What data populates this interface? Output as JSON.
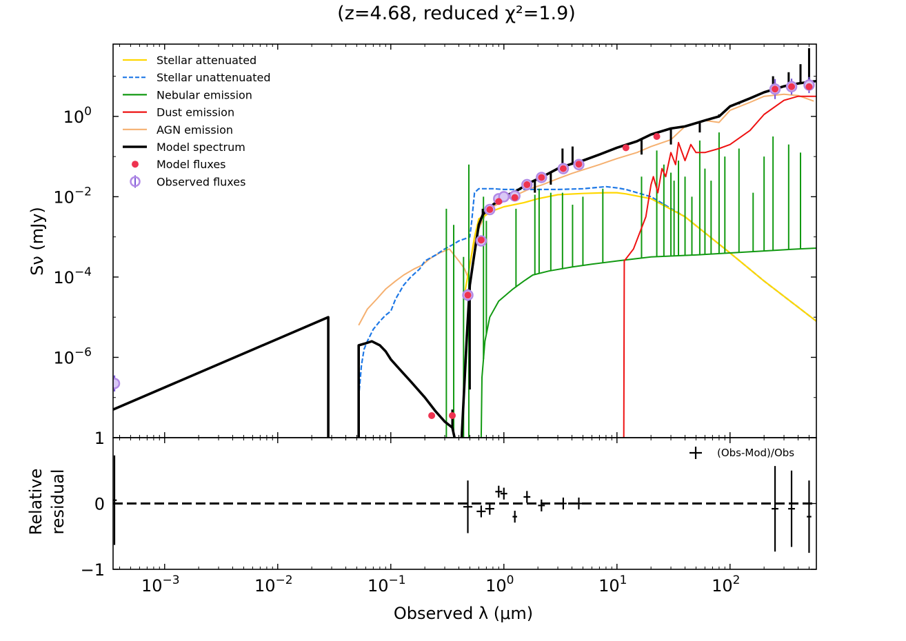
{
  "chart_data": {
    "type": "sed",
    "title": "(z=4.68, reduced χ²=1.9)",
    "xlabel": "Observed λ (μm)",
    "ylabel_main": "Sν (mJy)",
    "ylabel_residual_line1": "Relative",
    "ylabel_residual_line2": "residual",
    "x_scale": "log",
    "xlim": [
      0.00035,
      580
    ],
    "main_ylim_log10": [
      -8,
      1.8
    ],
    "residual_ylim": [
      -1,
      1
    ],
    "x_ticks": [
      {
        "value": 0.001,
        "base": "10",
        "exp": "−3"
      },
      {
        "value": 0.01,
        "base": "10",
        "exp": "−2"
      },
      {
        "value": 0.1,
        "base": "10",
        "exp": "−1"
      },
      {
        "value": 1,
        "base": "10",
        "exp": "0"
      },
      {
        "value": 10,
        "base": "10",
        "exp": "1"
      },
      {
        "value": 100,
        "base": "10",
        "exp": "2"
      }
    ],
    "main_y_ticks": [
      {
        "log10": -6,
        "base": "10",
        "exp": "−6"
      },
      {
        "log10": -4,
        "base": "10",
        "exp": "−4"
      },
      {
        "log10": -2,
        "base": "10",
        "exp": "−2"
      },
      {
        "log10": 0,
        "base": "10",
        "exp": "0"
      }
    ],
    "residual_y_ticks": [
      {
        "value": 1,
        "label": "1"
      },
      {
        "value": 0,
        "label": "0"
      },
      {
        "value": -1,
        "label": "−1"
      }
    ],
    "legend": [
      {
        "label": "Stellar attenuated",
        "color": "#ffd700",
        "style": "solid"
      },
      {
        "label": "Stellar unattenuated",
        "color": "#1e78e6",
        "style": "dashed"
      },
      {
        "label": "Nebular emission",
        "color": "#119911",
        "style": "solid"
      },
      {
        "label": "Dust emission",
        "color": "#ee1111",
        "style": "solid"
      },
      {
        "label": "AGN emission",
        "color": "#f5b070",
        "style": "solid"
      },
      {
        "label": "Model spectrum",
        "color": "#000000",
        "style": "thick"
      },
      {
        "label": "Model fluxes",
        "color": "#ee3350",
        "style": "dot"
      },
      {
        "label": "Observed fluxes",
        "color": "#b28ae6",
        "style": "circle-errorbar"
      }
    ],
    "residual_legend": "(Obs-Mod)/Obs",
    "series": [
      {
        "name": "AGN emission",
        "color": "#f5b070",
        "x": [
          0.052,
          0.062,
          0.075,
          0.09,
          0.11,
          0.13,
          0.16,
          0.19,
          0.22,
          0.27,
          0.33,
          0.4,
          0.45,
          0.48,
          0.53,
          0.6,
          0.7,
          0.8,
          1,
          1.3,
          1.7,
          2.2,
          3,
          4,
          5,
          7,
          10,
          15,
          20,
          30,
          40,
          60,
          80,
          100,
          150,
          200,
          300,
          400,
          550
        ],
        "y": [
          -5.2,
          -4.8,
          -4.55,
          -4.3,
          -4.1,
          -3.95,
          -3.8,
          -3.7,
          -3.55,
          -3.4,
          -3.3,
          -3.6,
          -3.8,
          -4.0,
          -3.3,
          -2.8,
          -2.4,
          -2.25,
          -2.1,
          -1.95,
          -1.8,
          -1.7,
          -1.55,
          -1.42,
          -1.33,
          -1.2,
          -1.05,
          -0.9,
          -0.75,
          -0.58,
          -0.25,
          -0.1,
          -0.15,
          0.15,
          0.35,
          0.5,
          0.55,
          0.52,
          0.38
        ]
      },
      {
        "name": "Stellar unattenuated",
        "color": "#1e78e6",
        "x": [
          0.052,
          0.055,
          0.058,
          0.062,
          0.07,
          0.08,
          0.09,
          0.1,
          0.11,
          0.13,
          0.15,
          0.18,
          0.2,
          0.25,
          0.3,
          0.35,
          0.4,
          0.45,
          0.5,
          0.52,
          0.55,
          0.6,
          0.8,
          1,
          1.5,
          2,
          3,
          5,
          8,
          10,
          12,
          20,
          40,
          60,
          100,
          200,
          580
        ],
        "y": [
          -7.0,
          -6.2,
          -5.8,
          -5.6,
          -5.3,
          -5.1,
          -4.95,
          -4.85,
          -4.55,
          -4.2,
          -4.0,
          -3.8,
          -3.6,
          -3.45,
          -3.3,
          -3.2,
          -3.1,
          -3.05,
          -3.0,
          -2.6,
          -1.9,
          -1.8,
          -1.8,
          -1.82,
          -1.82,
          -1.82,
          -1.82,
          -1.8,
          -1.75,
          -1.78,
          -1.82,
          -2.0,
          -2.5,
          -2.9,
          -3.4,
          -4.1,
          -5.1
        ]
      },
      {
        "name": "Stellar attenuated",
        "color": "#ffd700",
        "x": [
          0.45,
          0.5,
          0.55,
          0.6,
          0.7,
          0.8,
          1,
          1.5,
          2,
          3,
          5,
          8,
          10,
          12,
          20,
          40,
          60,
          100,
          200,
          580
        ],
        "y": [
          -4.4,
          -3.7,
          -3.0,
          -2.55,
          -2.45,
          -2.35,
          -2.25,
          -2.15,
          -2.05,
          -1.95,
          -1.92,
          -1.9,
          -1.9,
          -1.93,
          -2.05,
          -2.5,
          -2.9,
          -3.4,
          -4.1,
          -5.1
        ]
      },
      {
        "name": "Nebular emission",
        "color": "#119911",
        "x": [
          0.63,
          0.64,
          0.68,
          0.75,
          0.9,
          1.2,
          1.5,
          1.8,
          2.5,
          4,
          6,
          10,
          20,
          50,
          100,
          200,
          400,
          580
        ],
        "y": [
          -8,
          -6.5,
          -5.6,
          -5.0,
          -4.6,
          -4.3,
          -4.1,
          -3.95,
          -3.85,
          -3.75,
          -3.68,
          -3.6,
          -3.5,
          -3.45,
          -3.4,
          -3.35,
          -3.3,
          -3.28
        ],
        "spikes_x": [
          0.31,
          0.36,
          0.44,
          0.49,
          0.66,
          0.7,
          1.28,
          1.88,
          2.05,
          2.6,
          3.3,
          4.05,
          5.0,
          7.5,
          16.5,
          22.5,
          26,
          30,
          32,
          35,
          40,
          46,
          54,
          60,
          68,
          80,
          90,
          120,
          160,
          200,
          240,
          330,
          420
        ],
        "spikes_y": [
          -2.3,
          -2.7,
          -3.5,
          -1.2,
          -2.0,
          -2.6,
          -2.3,
          -1.95,
          -1.8,
          -1.9,
          -1.9,
          -2.2,
          -2.0,
          -1.8,
          -1.5,
          -0.85,
          -1.2,
          -1.4,
          -1.6,
          -1.1,
          -1.5,
          -2.0,
          -0.6,
          -1.3,
          -1.6,
          -0.4,
          -1.0,
          -0.8,
          -1.9,
          -1.0,
          -0.5,
          -0.7,
          -0.9
        ]
      },
      {
        "name": "Dust emission",
        "color": "#ee1111",
        "x": [
          11.5,
          11.6,
          14,
          18,
          20,
          21,
          23,
          25,
          27,
          30,
          33,
          35,
          40,
          45,
          50,
          60,
          80,
          100,
          150,
          200,
          300,
          400,
          580
        ],
        "y": [
          -8,
          -3.6,
          -3.3,
          -2.5,
          -1.7,
          -1.5,
          -1.9,
          -1.3,
          -1.5,
          -0.9,
          -1.2,
          -0.65,
          -1.1,
          -0.7,
          -0.9,
          -0.9,
          -0.8,
          -0.7,
          -0.35,
          0.05,
          0.4,
          0.5,
          0.5
        ]
      },
      {
        "name": "Model spectrum",
        "color": "#000000",
        "x": [
          0.00035,
          0.028,
          0.028,
          0.052,
          0.052,
          0.06,
          0.068,
          0.08,
          0.09,
          0.1,
          0.12,
          0.15,
          0.2,
          0.25,
          0.3,
          0.35,
          0.38,
          0.42,
          0.47,
          0.5,
          0.55,
          0.6,
          0.65,
          0.7,
          0.8,
          1,
          1.3,
          1.7,
          2.2,
          3,
          4,
          5,
          7,
          10,
          15,
          20,
          30,
          40,
          60,
          80,
          100,
          150,
          200,
          300,
          400,
          580
        ],
        "y": [
          -7.3,
          -5.0,
          -8.2,
          -8.2,
          -5.7,
          -5.65,
          -5.6,
          -5.7,
          -5.85,
          -6.05,
          -6.3,
          -6.6,
          -7.0,
          -7.35,
          -7.6,
          -7.75,
          -8.2,
          -8.2,
          -5.5,
          -4.2,
          -3.4,
          -2.7,
          -2.45,
          -2.35,
          -2.2,
          -2.0,
          -1.85,
          -1.65,
          -1.5,
          -1.3,
          -1.18,
          -1.1,
          -0.95,
          -0.78,
          -0.62,
          -0.45,
          -0.3,
          -0.25,
          -0.1,
          -0.0,
          0.25,
          0.45,
          0.6,
          0.75,
          0.82,
          0.88
        ],
        "spikes_x": [
          0.35,
          0.5,
          0.65,
          1.88,
          2.6,
          3.3,
          4.05,
          5.0,
          16.5,
          30,
          54,
          80,
          120,
          240,
          330,
          420,
          500
        ],
        "spikes_y": [
          -7.3,
          -6.8,
          -2.3,
          -1.9,
          -1.7,
          -0.8,
          -0.75,
          -1.1,
          -0.95,
          -0.7,
          -0.4,
          0.05,
          0.3,
          1.0,
          1.1,
          1.3,
          1.7
        ]
      }
    ],
    "model_fluxes": {
      "x": [
        0.23,
        0.35,
        0.48,
        0.63,
        0.75,
        0.9,
        1.25,
        1.6,
        2.15,
        3.35,
        4.6,
        12,
        22.5,
        250,
        350,
        500
      ],
      "y_log10": [
        -7.45,
        -7.45,
        -4.45,
        -3.08,
        -2.32,
        -2.12,
        -2.02,
        -1.7,
        -1.52,
        -1.3,
        -1.19,
        -0.78,
        -0.5,
        0.68,
        0.74,
        0.74
      ]
    },
    "observed_fluxes": {
      "x": [
        0.00036,
        0.48,
        0.63,
        0.75,
        0.9,
        1.0,
        1.25,
        1.6,
        2.15,
        3.35,
        4.6,
        250,
        350,
        500
      ],
      "y_log10": [
        -6.65,
        -4.45,
        -3.1,
        -2.32,
        -2.05,
        -2.0,
        -1.98,
        -1.7,
        -1.52,
        -1.3,
        -1.2,
        0.68,
        0.74,
        0.78
      ],
      "yerr_log10": [
        0.2,
        0.15,
        0.1,
        0.05,
        0.05,
        0.05,
        0.05,
        0.05,
        0.05,
        0.05,
        0.05,
        0.25,
        0.2,
        0.2
      ]
    },
    "residuals": {
      "x": [
        0.00036,
        0.48,
        0.63,
        0.75,
        0.9,
        1.0,
        1.25,
        1.6,
        2.15,
        3.35,
        4.6,
        250,
        350,
        500
      ],
      "y": [
        0.05,
        -0.05,
        -0.12,
        -0.08,
        0.18,
        0.15,
        -0.2,
        0.1,
        -0.03,
        0.0,
        0.0,
        -0.08,
        -0.08,
        -0.2
      ],
      "yerr": [
        0.68,
        0.4,
        0.0,
        0.0,
        0.0,
        0.0,
        0.0,
        0.0,
        0.0,
        0.0,
        0.0,
        0.65,
        0.58,
        0.55
      ],
      "xerr_dex": [
        0.02,
        0.04,
        0.04,
        0.04,
        0.03,
        0.03,
        0.02,
        0.03,
        0.03,
        0.03,
        0.03,
        0.03,
        0.03,
        0.02
      ]
    }
  }
}
